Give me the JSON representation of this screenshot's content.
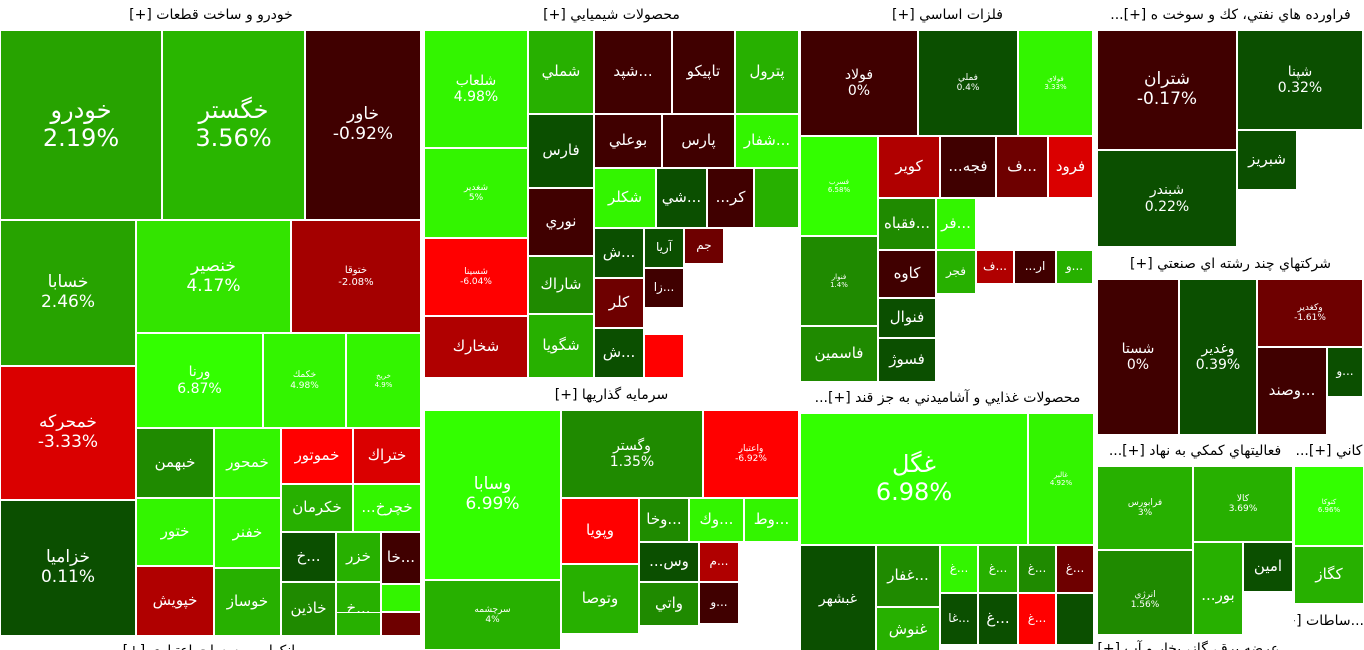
{
  "colors": {
    "dark_red": "#400000",
    "maroon": "#6e0000",
    "red": "#b00000",
    "bright_red": "#ff0000",
    "dark_green": "#0b4f00",
    "green": "#1f8a00",
    "mid_green": "#27b000",
    "light_green": "#33e400",
    "lime": "#33ff00"
  },
  "sectors": [
    {
      "title": "خودرو و ساخت قطعات [+]",
      "tiles": [
        {
          "sym": "خودرو",
          "pct": "2.19%",
          "color": "#27a300"
        },
        {
          "sym": "خگستر",
          "pct": "3.56%",
          "color": "#29b600"
        },
        {
          "sym": "خاور",
          "pct": "-0.92%",
          "color": "#400000"
        },
        {
          "sym": "خسابا",
          "pct": "2.46%",
          "color": "#27a300"
        },
        {
          "sym": "خنصير",
          "pct": "4.17%",
          "color": "#33e400"
        },
        {
          "sym": "ختوقا",
          "pct": "-2.08%",
          "color": "#a40000"
        },
        {
          "sym": "ورنا",
          "pct": "6.87%",
          "color": "#33ff00"
        },
        {
          "sym": "خكمك",
          "pct": "4.98%",
          "color": "#33f500"
        },
        {
          "sym": "خريخ",
          "pct": "4.9%",
          "color": "#33f500"
        },
        {
          "sym": "خمحركه",
          "pct": "-3.33%",
          "color": "#da0000"
        },
        {
          "sym": "خبهمن",
          "pct": "",
          "color": "#1f8a00"
        },
        {
          "sym": "خمحور",
          "pct": "",
          "color": "#33f500"
        },
        {
          "sym": "خموتور",
          "pct": "",
          "color": "#ff0000"
        },
        {
          "sym": "ختراك",
          "pct": "",
          "color": "#da0000"
        },
        {
          "sym": "ختور",
          "pct": "",
          "color": "#33f500"
        },
        {
          "sym": "خفنر",
          "pct": "",
          "color": "#33f500"
        },
        {
          "sym": "خكرمان",
          "pct": "",
          "color": "#27b000"
        },
        {
          "sym": "...خچرخ",
          "pct": "",
          "color": "#33f500"
        },
        {
          "sym": "خزاميا",
          "pct": "0.11%",
          "color": "#0b4f00"
        },
        {
          "sym": "خپويش",
          "pct": "",
          "color": "#b00000"
        },
        {
          "sym": "خوساز",
          "pct": "",
          "color": "#27b000"
        },
        {
          "sym": "خ...",
          "pct": "",
          "color": "#0b4f00"
        },
        {
          "sym": "خزر",
          "pct": "",
          "color": "#27b000"
        },
        {
          "sym": "خا...",
          "pct": "",
          "color": "#400000"
        },
        {
          "sym": "خاذين",
          "pct": "",
          "color": "#1f8a00"
        },
        {
          "sym": "خ...",
          "pct": "",
          "color": "#27b000"
        },
        {
          "sym": "",
          "pct": "",
          "color": "#33f500"
        },
        {
          "sym": "",
          "pct": "",
          "color": "#6e0000"
        },
        {
          "sym": "",
          "pct": "",
          "color": "#27b000"
        }
      ]
    },
    {
      "title": "محصولات شيميايي [+]",
      "tiles": [
        {
          "sym": "شلعاب",
          "pct": "4.98%",
          "color": "#33f500"
        },
        {
          "sym": "شملي",
          "pct": "",
          "color": "#27b000"
        },
        {
          "sym": "شپد...",
          "pct": "",
          "color": "#400000"
        },
        {
          "sym": "تاپيكو",
          "pct": "",
          "color": "#400000"
        },
        {
          "sym": "پترول",
          "pct": "",
          "color": "#27b000"
        },
        {
          "sym": "فارس",
          "pct": "",
          "color": "#0b4f00"
        },
        {
          "sym": "بوعلي",
          "pct": "",
          "color": "#400000"
        },
        {
          "sym": "پارس",
          "pct": "",
          "color": "#400000"
        },
        {
          "sym": "شفار...",
          "pct": "",
          "color": "#33f500"
        },
        {
          "sym": "شغدير",
          "pct": "5%",
          "color": "#33f500"
        },
        {
          "sym": "نوري",
          "pct": "",
          "color": "#400000"
        },
        {
          "sym": "شكلر",
          "pct": "",
          "color": "#33f500"
        },
        {
          "sym": "شي...",
          "pct": "",
          "color": "#0b4f00"
        },
        {
          "sym": "...كر",
          "pct": "",
          "color": "#400000"
        },
        {
          "sym": "",
          "pct": "",
          "color": "#27b000"
        },
        {
          "sym": "شسينا",
          "pct": "-6.04%",
          "color": "#ff0000"
        },
        {
          "sym": "شاراك",
          "pct": "",
          "color": "#1f8a00"
        },
        {
          "sym": "ش...",
          "pct": "",
          "color": "#0b4f00"
        },
        {
          "sym": "آريا",
          "pct": "",
          "color": "#0b4f00"
        },
        {
          "sym": "جم",
          "pct": "",
          "color": "#6e0000"
        },
        {
          "sym": "كلر",
          "pct": "",
          "color": "#6e0000"
        },
        {
          "sym": "زا...",
          "pct": "",
          "color": "#400000"
        },
        {
          "sym": "شخارك",
          "pct": "",
          "color": "#b00000"
        },
        {
          "sym": "شگويا",
          "pct": "",
          "color": "#27b000"
        },
        {
          "sym": "ش...",
          "pct": "",
          "color": "#0b4f00"
        },
        {
          "sym": "",
          "pct": "",
          "color": "#ff0000"
        }
      ]
    },
    {
      "title": "فلزات اساسي [+]",
      "tiles": [
        {
          "sym": "فولاد",
          "pct": "0%",
          "color": "#400000"
        },
        {
          "sym": "فملي",
          "pct": "0.4%",
          "color": "#0b4f00"
        },
        {
          "sym": "فولاي",
          "pct": "3.33%",
          "color": "#33f500"
        },
        {
          "sym": "فسرب",
          "pct": "6.58%",
          "color": "#33ff00"
        },
        {
          "sym": "كوير",
          "pct": "",
          "color": "#b00000"
        },
        {
          "sym": "...فجه",
          "pct": "",
          "color": "#400000"
        },
        {
          "sym": "ف...",
          "pct": "",
          "color": "#6e0000"
        },
        {
          "sym": "فرود",
          "pct": "",
          "color": "#da0000"
        },
        {
          "sym": "فقباه...",
          "pct": "",
          "color": "#1f8a00"
        },
        {
          "sym": "فر...",
          "pct": "",
          "color": "#33f500"
        },
        {
          "sym": "فنوار",
          "pct": "1.4%",
          "color": "#1f8a00"
        },
        {
          "sym": "كاوه",
          "pct": "",
          "color": "#400000"
        },
        {
          "sym": "فجر",
          "pct": "",
          "color": "#27b000"
        },
        {
          "sym": "ف...",
          "pct": "",
          "color": "#b00000"
        },
        {
          "sym": "...ار",
          "pct": "",
          "color": "#400000"
        },
        {
          "sym": "و...",
          "pct": "",
          "color": "#27b000"
        },
        {
          "sym": "فنوال",
          "pct": "",
          "color": "#0b4f00"
        },
        {
          "sym": "فاسمين",
          "pct": "",
          "color": "#1f8a00"
        },
        {
          "sym": "فسوژ",
          "pct": "",
          "color": "#0b4f00"
        }
      ]
    },
    {
      "title": "فراورده هاي نفتي، كك و سوخت ه [+]...",
      "tiles": [
        {
          "sym": "شتران",
          "pct": "-0.17%",
          "color": "#400000"
        },
        {
          "sym": "شپنا",
          "pct": "0.32%",
          "color": "#0b4f00"
        },
        {
          "sym": "شبريز",
          "pct": "",
          "color": "#0b4f00"
        },
        {
          "sym": "شبندر",
          "pct": "0.22%",
          "color": "#0b4f00"
        }
      ]
    },
    {
      "title": "شركتهاي چند رشته اي صنعتي [+]",
      "tiles": [
        {
          "sym": "شستا",
          "pct": "0%",
          "color": "#400000"
        },
        {
          "sym": "وغدير",
          "pct": "0.39%",
          "color": "#0b4f00"
        },
        {
          "sym": "وكغدير",
          "pct": "-1.61%",
          "color": "#6e0000"
        },
        {
          "sym": "وصند...",
          "pct": "",
          "color": "#400000"
        },
        {
          "sym": "و...",
          "pct": "",
          "color": "#0b4f00"
        }
      ]
    },
    {
      "title": "سرمايه گذاريها [+]",
      "tiles": [
        {
          "sym": "وسابا",
          "pct": "6.99%",
          "color": "#33ff00"
        },
        {
          "sym": "وگستر",
          "pct": "1.35%",
          "color": "#1f8a00"
        },
        {
          "sym": "واعتبار",
          "pct": "-6.92%",
          "color": "#ff0000"
        },
        {
          "sym": "وپويا",
          "pct": "",
          "color": "#ff0000"
        },
        {
          "sym": "وخا...",
          "pct": "",
          "color": "#1f8a00"
        },
        {
          "sym": "وك...",
          "pct": "",
          "color": "#33f500"
        },
        {
          "sym": "وط...",
          "pct": "",
          "color": "#33f500"
        },
        {
          "sym": "وتوصا",
          "pct": "",
          "color": "#27b000"
        },
        {
          "sym": "...وس",
          "pct": "",
          "color": "#0b4f00"
        },
        {
          "sym": "م...",
          "pct": "",
          "color": "#b00000"
        },
        {
          "sym": "سرچشمه",
          "pct": "4%",
          "color": "#27b000"
        },
        {
          "sym": "واتي",
          "pct": "",
          "color": "#1f8a00"
        },
        {
          "sym": "و...",
          "pct": "",
          "color": "#400000"
        }
      ]
    },
    {
      "title": "محصولات غذايي و آشاميدني به جز قند [+]...",
      "tiles": [
        {
          "sym": "غگل",
          "pct": "6.98%",
          "color": "#33ff00"
        },
        {
          "sym": "غالبر",
          "pct": "4.92%",
          "color": "#33f500"
        },
        {
          "sym": "غبشهر",
          "pct": "",
          "color": "#0b4f00"
        },
        {
          "sym": "غفار...",
          "pct": "",
          "color": "#1f8a00"
        },
        {
          "sym": "غ...",
          "pct": "",
          "color": "#33f500"
        },
        {
          "sym": "غ...",
          "pct": "",
          "color": "#27b000"
        },
        {
          "sym": "غ...",
          "pct": "",
          "color": "#1f8a00"
        },
        {
          "sym": "غ...",
          "pct": "",
          "color": "#6e0000"
        },
        {
          "sym": "غنوش",
          "pct": "",
          "color": "#27b000"
        },
        {
          "sym": "غا...",
          "pct": "",
          "color": "#0b4f00"
        },
        {
          "sym": "غ...",
          "pct": "",
          "color": "#0b4f00"
        },
        {
          "sym": "غ...",
          "pct": "",
          "color": "#ff0000"
        },
        {
          "sym": "",
          "pct": "",
          "color": "#0b4f00"
        }
      ]
    },
    {
      "title": "فعاليتهاي كمكي به نهاد [+]...",
      "tiles": [
        {
          "sym": "فرابورس",
          "pct": "3%",
          "color": "#27b000"
        },
        {
          "sym": "كالا",
          "pct": "3.69%",
          "color": "#27b000"
        },
        {
          "sym": "انرژي",
          "pct": "1.56%",
          "color": "#1f8a00"
        },
        {
          "sym": "...بور",
          "pct": "",
          "color": "#27b000"
        },
        {
          "sym": "امين",
          "pct": "",
          "color": "#0b4f00"
        }
      ]
    },
    {
      "title": "كاني [+]...",
      "tiles": [
        {
          "sym": "كتوكا",
          "pct": "6.96%",
          "color": "#33ff00"
        },
        {
          "sym": "كگاز",
          "pct": "",
          "color": "#27b000"
        }
      ]
    },
    {
      "title": "بانكها و موسسات اعتباري [+]",
      "tiles": []
    },
    {
      "title": "...ساطات [+]",
      "tiles": []
    },
    {
      "title": "...عرضه برق، گاز، بخار و آب [+]",
      "tiles": []
    }
  ]
}
